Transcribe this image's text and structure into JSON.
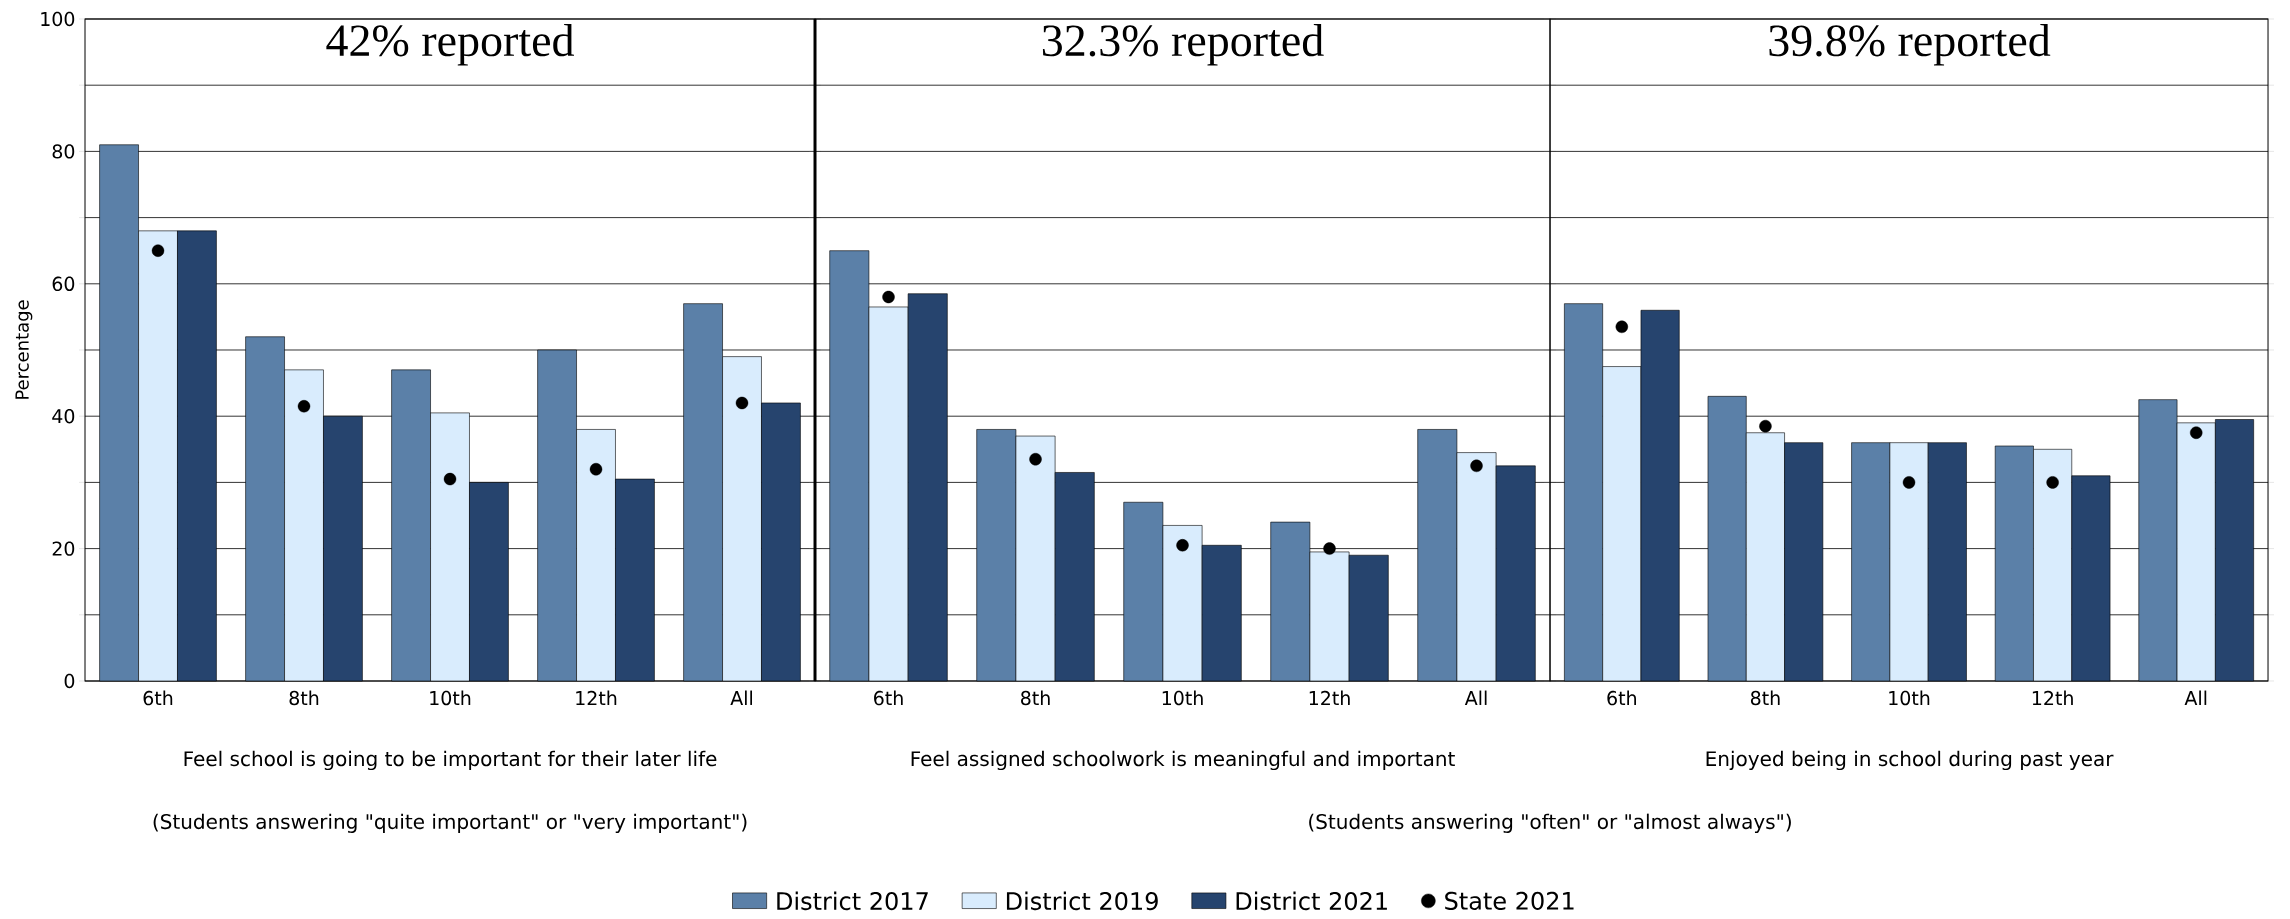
{
  "chart_data": [
    {
      "type": "bar",
      "title": "42% reported",
      "xlabel": "Feel school is going to be important for their later life",
      "ylabel": "Percentage",
      "annotations": [
        "(Students answering \"quite important\" or \"very important\")"
      ],
      "categories": [
        "6th",
        "8th",
        "10th",
        "12th",
        "All"
      ],
      "series": [
        {
          "name": "District 2017",
          "color": "#5b80a8",
          "values": [
            81,
            52,
            47,
            50,
            57
          ]
        },
        {
          "name": "District 2019",
          "color": "#d9ecfd",
          "values": [
            68,
            47,
            40.5,
            38,
            49
          ]
        },
        {
          "name": "District 2021",
          "color": "#26446e",
          "values": [
            68,
            40,
            30,
            30.5,
            42
          ]
        },
        {
          "name": "State 2021",
          "type": "scatter",
          "color": "#000000",
          "x": [
            "6th",
            "8th",
            "10th",
            "12th",
            "All"
          ],
          "values": [
            65,
            41.5,
            30.5,
            32,
            42
          ]
        }
      ],
      "marker": "circle",
      "grid": "y",
      "legend": "bottom",
      "ylim": [
        0,
        100
      ],
      "yticks": [
        0,
        {
          "value": 10,
          "label": null
        },
        20,
        {
          "value": 30,
          "label": null
        },
        40,
        {
          "value": 50,
          "label": null
        },
        60,
        {
          "value": 70,
          "label": null
        },
        80,
        {
          "value": 90,
          "label": null
        },
        100
      ]
    },
    {
      "type": "bar",
      "title": "32.3% reported",
      "xlabel": "Feel assigned schoolwork is meaningful and important",
      "annotations": [
        "(Students answering \"often\" or \"almost always\")"
      ],
      "categories": [
        "6th",
        "8th",
        "10th",
        "12th",
        "All"
      ],
      "series": [
        {
          "color": "#5b80a8",
          "values": [
            65,
            38,
            27,
            24,
            38
          ]
        },
        {
          "color": "#d9ecfd",
          "values": [
            56.5,
            37,
            23.5,
            19.5,
            34.5
          ]
        },
        {
          "color": "#26446e",
          "values": [
            58.5,
            31.5,
            20.5,
            19,
            32.5
          ]
        },
        {
          "type": "scatter",
          "color": "#000000",
          "x": [
            "6th",
            "8th",
            "10th",
            "12th",
            "All"
          ],
          "values": [
            58,
            33.5,
            20.5,
            20,
            32.5
          ]
        }
      ],
      "marker": "circle",
      "grid": "y",
      "tick_labels": "x",
      "ylim": [
        0,
        100
      ],
      "yticks": [
        0,
        {
          "value": 10,
          "label": null
        },
        20,
        {
          "value": 30,
          "label": null
        },
        40,
        {
          "value": 50,
          "label": null
        },
        60,
        {
          "value": 70,
          "label": null
        },
        80,
        {
          "value": 90,
          "label": null
        },
        100
      ]
    },
    {
      "type": "bar",
      "title": "39.8% reported",
      "xlabel": "Enjoyed being in school during past year",
      "categories": [
        "6th",
        "8th",
        "10th",
        "12th",
        "All"
      ],
      "series": [
        {
          "color": "#5b80a8",
          "values": [
            57,
            43,
            36,
            35.5,
            42.5
          ]
        },
        {
          "color": "#d9ecfd",
          "values": [
            47.5,
            37.5,
            36,
            35,
            39
          ]
        },
        {
          "color": "#26446e",
          "values": [
            56,
            36,
            36,
            31,
            39.5
          ]
        },
        {
          "type": "scatter",
          "color": "#000000",
          "x": [
            "6th",
            "8th",
            "10th",
            "12th",
            "All"
          ],
          "values": [
            53.5,
            38.5,
            30,
            30,
            37.5
          ]
        }
      ],
      "marker": "circle",
      "grid": "y",
      "tick_labels": "x",
      "ylim": [
        0,
        100
      ],
      "yticks": [
        0,
        {
          "value": 10,
          "label": null
        },
        20,
        {
          "value": 30,
          "label": null
        },
        40,
        {
          "value": 50,
          "label": null
        },
        60,
        {
          "value": 70,
          "label": null
        },
        80,
        {
          "value": 90,
          "label": null
        },
        100
      ]
    }
  ]
}
